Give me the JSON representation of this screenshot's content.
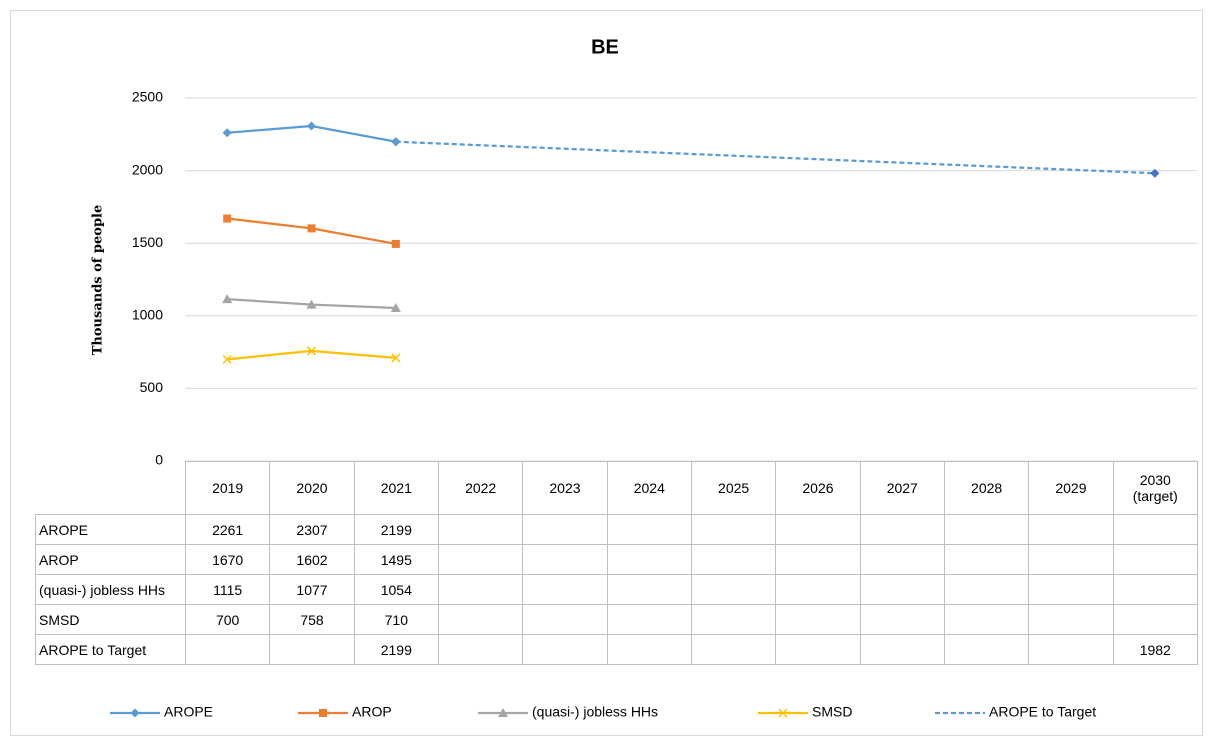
{
  "chart_data": {
    "type": "line",
    "title": "BE",
    "y_label": "Thousands of people",
    "categories": [
      "2019",
      "2020",
      "2021",
      "2022",
      "2023",
      "2024",
      "2025",
      "2026",
      "2027",
      "2028",
      "2029",
      "2030 (target)"
    ],
    "series": [
      {
        "name": "AROPE",
        "color": "#5b9bd5",
        "marker": "diamond",
        "values": [
          2261,
          2307,
          2199,
          null,
          null,
          null,
          null,
          null,
          null,
          null,
          null,
          null
        ]
      },
      {
        "name": "AROP",
        "color": "#ed7d31",
        "marker": "square",
        "values": [
          1670,
          1602,
          1495,
          null,
          null,
          null,
          null,
          null,
          null,
          null,
          null,
          null
        ]
      },
      {
        "name": "(quasi-) jobless HHs",
        "color": "#a5a5a5",
        "marker": "triangle",
        "values": [
          1115,
          1077,
          1054,
          null,
          null,
          null,
          null,
          null,
          null,
          null,
          null,
          null
        ]
      },
      {
        "name": "SMSD",
        "color": "#ffc000",
        "marker": "x",
        "values": [
          700,
          758,
          710,
          null,
          null,
          null,
          null,
          null,
          null,
          null,
          null,
          null
        ]
      },
      {
        "name": "AROPE to Target",
        "color": "#5b9bd5",
        "marker_color": "#4472c4",
        "marker": "diamond",
        "dashed": true,
        "connect_gaps": true,
        "values": [
          null,
          null,
          2199,
          null,
          null,
          null,
          null,
          null,
          null,
          null,
          null,
          1982
        ]
      }
    ],
    "ylim": [
      0,
      2500
    ],
    "yticks": [
      0,
      500,
      1000,
      1500,
      2000,
      2500
    ],
    "grid": true,
    "legend": "bottom",
    "data_table": true
  }
}
